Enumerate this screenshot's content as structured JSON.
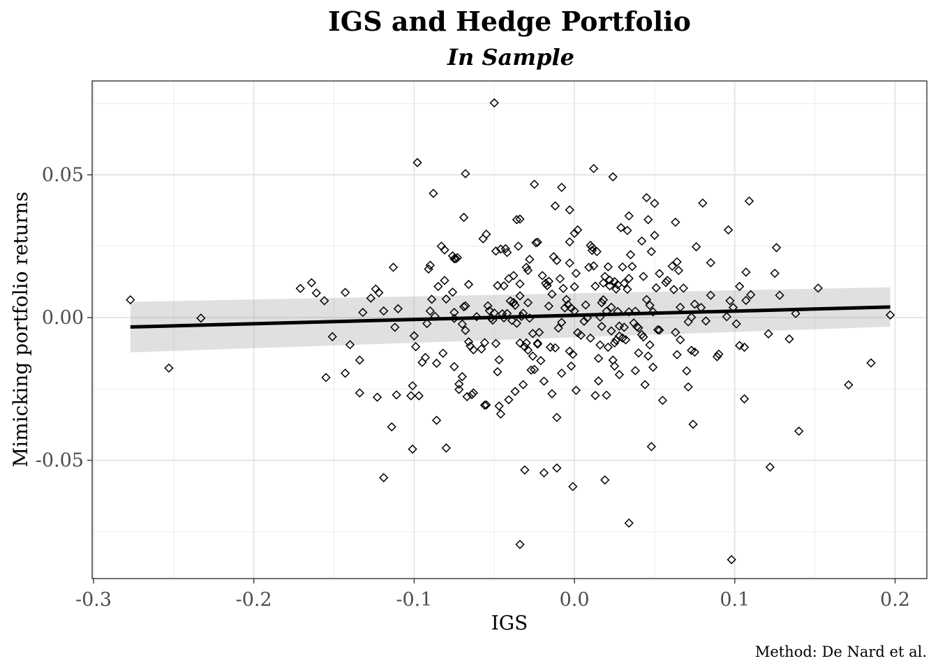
{
  "chart_data": {
    "type": "scatter",
    "title": "IGS and Hedge Portfolio",
    "subtitle": "In Sample",
    "xlabel": "IGS",
    "ylabel": "Mimicking portfolio returns",
    "caption": "Method: De Nard et al.",
    "xlim": [
      -0.3,
      0.22
    ],
    "ylim": [
      -0.092,
      0.083
    ],
    "xticks": [
      -0.3,
      -0.2,
      -0.1,
      0.0,
      0.1,
      0.2
    ],
    "xtick_labels": [
      "-0.3",
      "-0.2",
      "-0.1",
      "0.0",
      "0.1",
      "0.2"
    ],
    "yticks": [
      -0.05,
      0.0,
      0.05
    ],
    "ytick_labels": [
      "-0.05",
      "0.00",
      "0.05"
    ],
    "grid": true,
    "marker": "diamond-open",
    "regression_line": {
      "x": [
        -0.277,
        0.197
      ],
      "y": [
        -0.0033,
        0.0037
      ],
      "ci_lower": [
        -0.0122,
        -0.0032
      ],
      "ci_upper": [
        0.0055,
        0.0106
      ]
    },
    "points": [
      [
        -0.277,
        0.0062
      ],
      [
        -0.253,
        -0.0177
      ],
      [
        -0.233,
        -0.0002
      ],
      [
        -0.171,
        0.0102
      ],
      [
        -0.164,
        0.0122
      ],
      [
        -0.161,
        0.0086
      ],
      [
        -0.156,
        0.0059
      ],
      [
        -0.155,
        -0.021
      ],
      [
        -0.151,
        -0.0067
      ],
      [
        -0.143,
        0.0088
      ],
      [
        -0.143,
        -0.0195
      ],
      [
        -0.14,
        -0.0095
      ],
      [
        -0.134,
        -0.0149
      ],
      [
        -0.134,
        -0.0264
      ],
      [
        -0.132,
        0.0018
      ],
      [
        -0.127,
        0.0068
      ],
      [
        -0.124,
        0.01
      ],
      [
        -0.123,
        -0.0279
      ],
      [
        -0.122,
        0.0087
      ],
      [
        -0.119,
        0.0023
      ],
      [
        -0.119,
        -0.0561
      ],
      [
        -0.114,
        -0.0383
      ],
      [
        -0.113,
        0.0176
      ],
      [
        -0.112,
        -0.0034
      ],
      [
        -0.111,
        -0.0271
      ],
      [
        -0.11,
        0.0031
      ],
      [
        -0.102,
        -0.0274
      ],
      [
        -0.101,
        -0.0239
      ],
      [
        -0.101,
        -0.0461
      ],
      [
        -0.1,
        -0.0064
      ],
      [
        -0.099,
        -0.0102
      ],
      [
        -0.098,
        0.0543
      ],
      [
        -0.097,
        -0.0274
      ],
      [
        -0.095,
        -0.0157
      ],
      [
        -0.093,
        -0.014
      ],
      [
        -0.092,
        -0.0021
      ],
      [
        -0.091,
        0.017
      ],
      [
        -0.09,
        0.0183
      ],
      [
        -0.09,
        0.0023
      ],
      [
        -0.089,
        0.0064
      ],
      [
        -0.088,
        0.0435
      ],
      [
        -0.087,
        0.0004
      ],
      [
        -0.086,
        -0.016
      ],
      [
        -0.085,
        0.0109
      ],
      [
        -0.086,
        -0.036
      ],
      [
        -0.083,
        0.025
      ],
      [
        -0.082,
        -0.0125
      ],
      [
        -0.081,
        0.013
      ],
      [
        -0.081,
        0.0237
      ],
      [
        -0.08,
        -0.0457
      ],
      [
        -0.08,
        0.0065
      ],
      [
        -0.076,
        0.0216
      ],
      [
        -0.076,
        0.0089
      ],
      [
        -0.075,
        0.0206
      ],
      [
        -0.075,
        0.0018
      ],
      [
        -0.075,
        -0.0003
      ],
      [
        -0.075,
        -0.0172
      ],
      [
        -0.074,
        0.0206
      ],
      [
        -0.073,
        0.021
      ],
      [
        -0.072,
        -0.0233
      ],
      [
        -0.072,
        -0.0252
      ],
      [
        -0.07,
        -0.0023
      ],
      [
        -0.07,
        -0.0207
      ],
      [
        -0.069,
        0.0038
      ],
      [
        -0.069,
        0.0351
      ],
      [
        -0.068,
        0.0504
      ],
      [
        -0.068,
        -0.0045
      ],
      [
        -0.068,
        0.0041
      ],
      [
        -0.067,
        -0.0277
      ],
      [
        -0.066,
        0.0116
      ],
      [
        -0.066,
        -0.0085
      ],
      [
        -0.065,
        -0.01
      ],
      [
        -0.064,
        -0.027
      ],
      [
        -0.063,
        -0.0113
      ],
      [
        -0.063,
        -0.0264
      ],
      [
        -0.061,
        0.0003
      ],
      [
        -0.058,
        -0.011
      ],
      [
        -0.057,
        0.0276
      ],
      [
        -0.056,
        -0.0307
      ],
      [
        -0.056,
        -0.0088
      ],
      [
        -0.055,
        -0.0306
      ],
      [
        -0.055,
        0.0292
      ],
      [
        -0.054,
        0.0041
      ],
      [
        -0.053,
        0.0024
      ],
      [
        -0.052,
        -0.0002
      ],
      [
        -0.051,
        -0.0009
      ],
      [
        -0.05,
        0.0752
      ],
      [
        -0.05,
        0.0016
      ],
      [
        -0.049,
        -0.0091
      ],
      [
        -0.049,
        0.0233
      ],
      [
        -0.048,
        -0.019
      ],
      [
        -0.048,
        0.0112
      ],
      [
        -0.047,
        -0.0148
      ],
      [
        -0.047,
        -0.031
      ],
      [
        -0.046,
        0.024
      ],
      [
        -0.046,
        -0.0338
      ],
      [
        -0.045,
        0.0013
      ],
      [
        -0.044,
        -0.0001
      ],
      [
        -0.044,
        0.0111
      ],
      [
        -0.043,
        0.0241
      ],
      [
        -0.042,
        0.0014
      ],
      [
        -0.042,
        0.0228
      ],
      [
        -0.041,
        -0.0288
      ],
      [
        -0.041,
        0.0136
      ],
      [
        -0.04,
        0.0058
      ],
      [
        -0.039,
        -0.001
      ],
      [
        -0.038,
        0.0053
      ],
      [
        -0.038,
        0.0147
      ],
      [
        -0.037,
        0.0043
      ],
      [
        -0.037,
        -0.0259
      ],
      [
        -0.036,
        0.0343
      ],
      [
        -0.036,
        -0.002
      ],
      [
        -0.035,
        0.025
      ],
      [
        -0.034,
        0.0345
      ],
      [
        -0.034,
        0.0118
      ],
      [
        -0.034,
        0.0076
      ],
      [
        -0.034,
        -0.0089
      ],
      [
        -0.034,
        -0.0795
      ],
      [
        -0.033,
        0.0004
      ],
      [
        -0.032,
        -0.0235
      ],
      [
        -0.032,
        0.0015
      ],
      [
        -0.031,
        -0.0534
      ],
      [
        -0.031,
        -0.0103
      ],
      [
        -0.03,
        -0.0089
      ],
      [
        -0.03,
        0.0176
      ],
      [
        -0.029,
        0.0165
      ],
      [
        -0.029,
        0.0052
      ],
      [
        -0.029,
        -0.0114
      ],
      [
        -0.028,
        -0.0002
      ],
      [
        -0.028,
        0.0204
      ],
      [
        -0.027,
        -0.0184
      ],
      [
        -0.026,
        -0.0056
      ],
      [
        -0.026,
        -0.0135
      ],
      [
        -0.025,
        0.0467
      ],
      [
        -0.025,
        -0.0182
      ],
      [
        -0.024,
        0.0262
      ],
      [
        -0.023,
        0.0264
      ],
      [
        -0.023,
        -0.0093
      ],
      [
        -0.023,
        -0.009
      ],
      [
        -0.022,
        -0.0052
      ],
      [
        -0.021,
        -0.0151
      ],
      [
        -0.02,
        0.0147
      ],
      [
        -0.019,
        -0.0544
      ],
      [
        -0.019,
        -0.0223
      ],
      [
        -0.018,
        0.012
      ],
      [
        -0.017,
        0.0112
      ],
      [
        -0.016,
        0.0127
      ],
      [
        -0.016,
        0.004
      ],
      [
        -0.015,
        -0.0104
      ],
      [
        -0.014,
        0.0082
      ],
      [
        -0.014,
        -0.0267
      ],
      [
        -0.013,
        0.0213
      ],
      [
        -0.012,
        0.0391
      ],
      [
        -0.012,
        -0.0106
      ],
      [
        -0.011,
        -0.0527
      ],
      [
        -0.011,
        -0.035
      ],
      [
        -0.011,
        0.02
      ],
      [
        -0.01,
        -0.0037
      ],
      [
        -0.009,
        0.0136
      ],
      [
        -0.008,
        0.0456
      ],
      [
        -0.008,
        -0.0017
      ],
      [
        -0.008,
        -0.0195
      ],
      [
        -0.007,
        0.0102
      ],
      [
        -0.006,
        0.0034
      ],
      [
        -0.005,
        0.0063
      ],
      [
        -0.004,
        0.0045
      ],
      [
        -0.003,
        0.0191
      ],
      [
        -0.003,
        -0.0118
      ],
      [
        -0.003,
        0.0265
      ],
      [
        -0.003,
        0.0377
      ],
      [
        -0.002,
        -0.017
      ],
      [
        -0.002,
        0.0033
      ],
      [
        -0.001,
        -0.0592
      ],
      [
        -0.001,
        -0.0129
      ],
      [
        0.0,
        0.0023
      ],
      [
        0.0,
        0.0295
      ],
      [
        0.0,
        0.0108
      ],
      [
        0.001,
        0.0155
      ],
      [
        0.001,
        -0.0255
      ],
      [
        0.002,
        0.0307
      ],
      [
        0.002,
        -0.0053
      ],
      [
        0.004,
        -0.0062
      ],
      [
        0.006,
        -0.0013
      ],
      [
        0.007,
        0.0044
      ],
      [
        0.008,
        -0.0001
      ],
      [
        0.009,
        0.0176
      ],
      [
        0.01,
        0.0253
      ],
      [
        0.01,
        -0.0072
      ],
      [
        0.011,
        0.0235
      ],
      [
        0.011,
        0.0246
      ],
      [
        0.012,
        0.0181
      ],
      [
        0.012,
        0.0522
      ],
      [
        0.013,
        -0.0273
      ],
      [
        0.013,
        0.011
      ],
      [
        0.014,
        0.0231
      ],
      [
        0.015,
        -0.0143
      ],
      [
        0.015,
        -0.0222
      ],
      [
        0.016,
        0.0002
      ],
      [
        0.016,
        -0.0096
      ],
      [
        0.017,
        0.0052
      ],
      [
        0.017,
        -0.0031
      ],
      [
        0.018,
        0.0121
      ],
      [
        0.018,
        0.0062
      ],
      [
        0.019,
        -0.0569
      ],
      [
        0.019,
        0.0144
      ],
      [
        0.02,
        -0.0272
      ],
      [
        0.02,
        0.0022
      ],
      [
        0.021,
        0.0178
      ],
      [
        0.021,
        -0.0104
      ],
      [
        0.022,
        0.0111
      ],
      [
        0.022,
        0.0131
      ],
      [
        0.023,
        0.0036
      ],
      [
        0.023,
        -0.0047
      ],
      [
        0.024,
        0.0493
      ],
      [
        0.024,
        -0.0149
      ],
      [
        0.025,
        -0.017
      ],
      [
        0.025,
        0.0126
      ],
      [
        0.025,
        -0.0089
      ],
      [
        0.026,
        0.01
      ],
      [
        0.026,
        -0.0079
      ],
      [
        0.027,
        0.0115
      ],
      [
        0.027,
        0.0021
      ],
      [
        0.028,
        -0.0065
      ],
      [
        0.028,
        -0.02
      ],
      [
        0.028,
        -0.003
      ],
      [
        0.029,
        0.0315
      ],
      [
        0.03,
        0.0177
      ],
      [
        0.03,
        -0.0072
      ],
      [
        0.031,
        0.012
      ],
      [
        0.031,
        -0.0034
      ],
      [
        0.032,
        -0.0078
      ],
      [
        0.033,
        0.0099
      ],
      [
        0.033,
        0.0305
      ],
      [
        0.034,
        0.0356
      ],
      [
        0.034,
        -0.072
      ],
      [
        0.034,
        0.002
      ],
      [
        0.034,
        0.0137
      ],
      [
        0.035,
        0.022
      ],
      [
        0.036,
        0.0179
      ],
      [
        0.037,
        -0.0019
      ],
      [
        0.038,
        0.0022
      ],
      [
        0.038,
        -0.0186
      ],
      [
        0.039,
        -0.0032
      ],
      [
        0.04,
        -0.0124
      ],
      [
        0.04,
        -0.0036
      ],
      [
        0.042,
        0.0268
      ],
      [
        0.042,
        -0.006
      ],
      [
        0.043,
        0.0144
      ],
      [
        0.043,
        -0.0068
      ],
      [
        0.044,
        -0.0235
      ],
      [
        0.045,
        0.042
      ],
      [
        0.045,
        0.0063
      ],
      [
        0.046,
        0.0343
      ],
      [
        0.046,
        -0.0135
      ],
      [
        0.047,
        0.0043
      ],
      [
        0.047,
        -0.0096
      ],
      [
        0.048,
        0.0231
      ],
      [
        0.048,
        -0.0452
      ],
      [
        0.049,
        -0.0174
      ],
      [
        0.049,
        0.002
      ],
      [
        0.05,
        0.04
      ],
      [
        0.05,
        0.0288
      ],
      [
        0.051,
        0.0104
      ],
      [
        0.052,
        -0.0043
      ],
      [
        0.053,
        0.0154
      ],
      [
        0.053,
        -0.0044
      ],
      [
        0.055,
        -0.029
      ],
      [
        0.057,
        0.0123
      ],
      [
        0.058,
        0.013
      ],
      [
        0.061,
        0.018
      ],
      [
        0.062,
        0.0098
      ],
      [
        0.063,
        -0.0052
      ],
      [
        0.063,
        0.0334
      ],
      [
        0.064,
        -0.013
      ],
      [
        0.064,
        0.0195
      ],
      [
        0.065,
        0.0165
      ],
      [
        0.066,
        0.0036
      ],
      [
        0.066,
        -0.0078
      ],
      [
        0.068,
        0.0103
      ],
      [
        0.07,
        -0.0187
      ],
      [
        0.071,
        -0.0243
      ],
      [
        0.071,
        -0.0015
      ],
      [
        0.073,
        0.0001
      ],
      [
        0.073,
        -0.0115
      ],
      [
        0.074,
        -0.0374
      ],
      [
        0.075,
        0.0047
      ],
      [
        0.075,
        -0.0121
      ],
      [
        0.076,
        0.0248
      ],
      [
        0.079,
        0.0035
      ],
      [
        0.08,
        0.0401
      ],
      [
        0.082,
        -0.0012
      ],
      [
        0.085,
        0.0192
      ],
      [
        0.085,
        0.0078
      ],
      [
        0.089,
        -0.0137
      ],
      [
        0.09,
        -0.0128
      ],
      [
        0.095,
        0.0003
      ],
      [
        0.096,
        0.0307
      ],
      [
        0.097,
        0.0059
      ],
      [
        0.098,
        -0.0848
      ],
      [
        0.099,
        0.0035
      ],
      [
        0.101,
        -0.0022
      ],
      [
        0.103,
        -0.0098
      ],
      [
        0.103,
        0.0109
      ],
      [
        0.106,
        -0.0104
      ],
      [
        0.106,
        -0.0285
      ],
      [
        0.107,
        0.0159
      ],
      [
        0.107,
        0.006
      ],
      [
        0.109,
        0.0408
      ],
      [
        0.11,
        0.008
      ],
      [
        0.121,
        -0.0057
      ],
      [
        0.122,
        -0.0524
      ],
      [
        0.125,
        0.0155
      ],
      [
        0.126,
        0.0245
      ],
      [
        0.128,
        0.0078
      ],
      [
        0.134,
        -0.0075
      ],
      [
        0.138,
        0.0014
      ],
      [
        0.14,
        -0.0398
      ],
      [
        0.152,
        0.0103
      ],
      [
        0.171,
        -0.0236
      ],
      [
        0.185,
        -0.0159
      ],
      [
        0.197,
        0.0009
      ]
    ]
  }
}
